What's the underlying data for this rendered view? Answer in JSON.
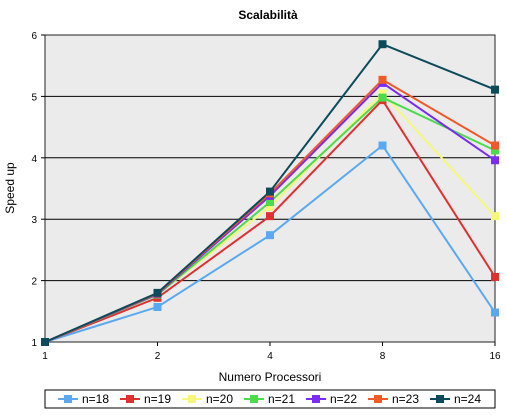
{
  "chart_data": {
    "type": "line",
    "title": "Scalabilità",
    "xlabel": "Numero Processori",
    "ylabel": "Speed up",
    "x": [
      1,
      2,
      4,
      8,
      16
    ],
    "x_tick_labels": [
      "1",
      "2",
      "4",
      "8",
      "16"
    ],
    "x_scale": "log2",
    "ylim": [
      1,
      6
    ],
    "y_ticks": [
      1,
      2,
      3,
      4,
      5,
      6
    ],
    "grid": "horizontal",
    "legend_position": "bottom",
    "series": [
      {
        "name": "n=18",
        "color": "#5aa8f0",
        "values": [
          1,
          1.57,
          2.74,
          4.2,
          1.48
        ]
      },
      {
        "name": "n=19",
        "color": "#e03131",
        "values": [
          1,
          1.72,
          3.05,
          4.94,
          2.06
        ]
      },
      {
        "name": "n=20",
        "color": "#f7f77a",
        "values": [
          1,
          1.78,
          3.2,
          5.05,
          3.05
        ]
      },
      {
        "name": "n=21",
        "color": "#4bdc4b",
        "values": [
          1,
          1.77,
          3.28,
          4.98,
          4.12
        ]
      },
      {
        "name": "n=22",
        "color": "#7a2cf0",
        "values": [
          1,
          1.78,
          3.38,
          5.22,
          3.96
        ]
      },
      {
        "name": "n=23",
        "color": "#f0592a",
        "values": [
          1,
          1.79,
          3.42,
          5.27,
          4.2
        ]
      },
      {
        "name": "n=24",
        "color": "#0c4a5c",
        "values": [
          1,
          1.8,
          3.45,
          5.85,
          5.11
        ]
      }
    ]
  }
}
